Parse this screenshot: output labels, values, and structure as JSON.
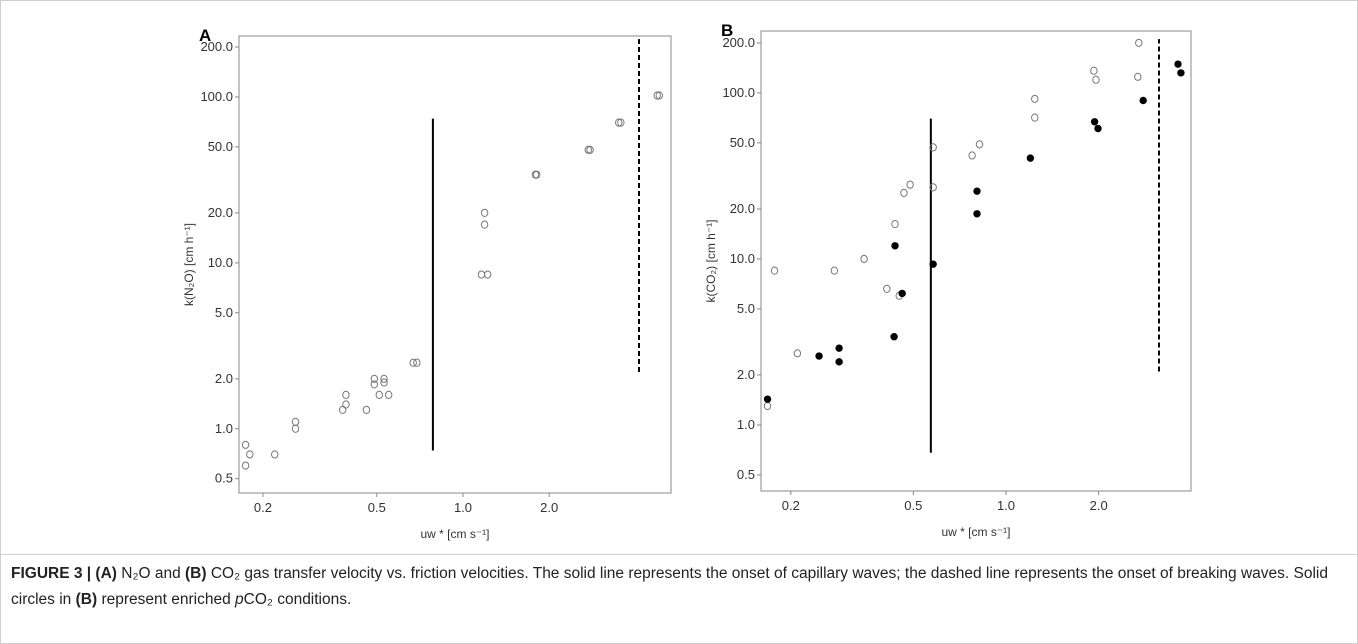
{
  "chart_data": [
    {
      "type": "scatter",
      "panel": "A",
      "ylabel": "k(N₂O) [cm h⁻¹]",
      "xlabel": "uw * [cm s⁻¹]",
      "xscale": "log",
      "yscale": "log",
      "xlim": [
        0.165,
        5.33
      ],
      "ylim": [
        0.41,
        233
      ],
      "xticks": [
        0.2,
        0.5,
        {
          "value": 1,
          "label": "1.0"
        },
        {
          "value": 2,
          "label": "2.0"
        }
      ],
      "yticks": [
        0.5,
        {
          "value": 1,
          "label": "1.0"
        },
        {
          "value": 2,
          "label": "2.0"
        },
        {
          "value": 5,
          "label": "5.0"
        },
        {
          "value": 10,
          "label": "10.0"
        },
        {
          "value": 20,
          "label": "20.0"
        },
        {
          "value": 50,
          "label": "50.0"
        },
        {
          "value": 100,
          "label": "100.0"
        },
        {
          "value": 200,
          "label": "200.0"
        }
      ],
      "series": [
        {
          "marker": "open",
          "color": "#777777",
          "x": [
            0.174,
            0.174,
            0.18,
            0.22,
            0.26,
            0.26,
            0.38,
            0.39,
            0.39,
            0.46,
            0.49,
            0.49,
            0.51,
            0.53,
            0.53,
            0.55,
            0.67,
            0.69,
            1.16,
            1.22,
            1.19,
            1.19,
            1.79,
            1.81,
            2.74,
            2.78,
            3.5,
            3.56,
            4.77,
            4.85
          ],
          "values": [
            0.8,
            0.6,
            0.7,
            0.7,
            1.1,
            1.0,
            1.3,
            1.4,
            1.6,
            1.3,
            2.0,
            1.85,
            1.6,
            2.0,
            1.9,
            1.6,
            2.5,
            2.5,
            8.5,
            8.5,
            20,
            17,
            34,
            34,
            48,
            48,
            70,
            70,
            102,
            102
          ]
        }
      ],
      "reference_lines": [
        {
          "x": 0.785,
          "y": [
            0.74,
            74
          ],
          "style": "solid"
        },
        {
          "x": 4.12,
          "y": [
            2.2,
            223
          ],
          "style": "dashed"
        }
      ]
    },
    {
      "type": "scatter",
      "panel": "B",
      "ylabel": "k(CO₂) [cm h⁻¹]",
      "xlabel": "uw * [cm s⁻¹]",
      "xscale": "log",
      "yscale": "log",
      "xlim": [
        0.16,
        3.99
      ],
      "ylim": [
        0.4,
        236
      ],
      "xticks": [
        0.2,
        0.5,
        {
          "value": 1,
          "label": "1.0"
        },
        {
          "value": 2,
          "label": "2.0"
        }
      ],
      "yticks": [
        0.5,
        {
          "value": 1,
          "label": "1.0"
        },
        {
          "value": 2,
          "label": "2.0"
        },
        {
          "value": 5,
          "label": "5.0"
        },
        {
          "value": 10,
          "label": "10.0"
        },
        {
          "value": 20,
          "label": "20.0"
        },
        {
          "value": 50,
          "label": "50.0"
        },
        {
          "value": 100,
          "label": "100.0"
        },
        {
          "value": 200,
          "label": "200.0"
        }
      ],
      "series": [
        {
          "marker": "open",
          "color": "#777777",
          "x": [
            0.168,
            0.177,
            0.21,
            0.277,
            0.346,
            0.41,
            0.436,
            0.45,
            0.466,
            0.488,
            0.58,
            0.58,
            0.776,
            0.82,
            1.24,
            1.24,
            1.93,
            1.96,
            2.68,
            2.7
          ],
          "values": [
            1.3,
            8.5,
            2.7,
            8.5,
            10,
            6.6,
            16.2,
            6.0,
            25,
            28,
            47,
            27,
            42,
            49,
            92,
            71,
            136,
            120,
            125,
            200
          ]
        },
        {
          "marker": "filled",
          "color": "#000000",
          "x": [
            0.168,
            0.247,
            0.287,
            0.287,
            0.433,
            0.436,
            0.46,
            0.58,
            0.805,
            0.805,
            1.2,
            1.94,
            1.99,
            2.79,
            3.62,
            3.7
          ],
          "values": [
            1.43,
            2.6,
            2.9,
            2.4,
            3.4,
            12,
            6.2,
            9.3,
            25.6,
            18.7,
            40.5,
            67,
            61,
            90,
            149,
            132
          ]
        }
      ],
      "reference_lines": [
        {
          "x": 0.57,
          "y": [
            0.68,
            70
          ],
          "style": "solid"
        },
        {
          "x": 3.14,
          "y": [
            2.1,
            211
          ],
          "style": "dashed"
        }
      ]
    }
  ],
  "caption": [
    {
      "text": "FIGURE 3 | (A)",
      "bold": true
    },
    {
      "text": " N₂O and "
    },
    {
      "text": "(B)",
      "bold": true
    },
    {
      "text": " CO₂ gas transfer velocity vs. friction velocities. The solid line represents the onset of capillary waves; the dashed line represents the onset of breaking waves. Solid circles in "
    },
    {
      "text": "(B)",
      "bold": true
    },
    {
      "text": " represent enriched "
    },
    {
      "text": "p",
      "italic": true
    },
    {
      "text": "CO₂ conditions."
    }
  ]
}
